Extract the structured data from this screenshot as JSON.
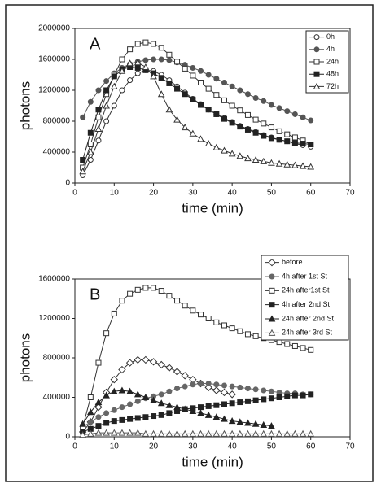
{
  "chart_data": [
    {
      "type": "line",
      "label": "A",
      "xlabel": "time (min)",
      "ylabel": "photons",
      "xlim": [
        0,
        70
      ],
      "xticks": [
        0,
        10,
        20,
        30,
        40,
        50,
        60,
        70
      ],
      "ylim": [
        0,
        2000000
      ],
      "yticks": [
        0,
        400000,
        800000,
        1200000,
        1600000,
        2000000
      ],
      "legend": "upper right",
      "x": [
        2,
        4,
        6,
        8,
        10,
        12,
        14,
        16,
        18,
        20,
        22,
        24,
        26,
        28,
        30,
        32,
        34,
        36,
        38,
        40,
        42,
        44,
        46,
        48,
        50,
        52,
        54,
        56,
        58,
        60
      ],
      "series": [
        {
          "name": "0h",
          "color": "#333333",
          "marker": "circle-open",
          "values": [
            100000,
            300000,
            550000,
            800000,
            1000000,
            1200000,
            1330000,
            1420000,
            1460000,
            1450000,
            1400000,
            1330000,
            1250000,
            1170000,
            1090000,
            1020000,
            950000,
            890000,
            840000,
            790000,
            740000,
            700000,
            660000,
            620000,
            590000,
            560000,
            540000,
            510000,
            490000,
            470000
          ]
        },
        {
          "name": "4h",
          "color": "#555555",
          "marker": "circle-filled",
          "values": [
            850000,
            1050000,
            1200000,
            1320000,
            1420000,
            1490000,
            1540000,
            1570000,
            1590000,
            1600000,
            1600000,
            1590000,
            1560000,
            1530000,
            1490000,
            1450000,
            1400000,
            1350000,
            1300000,
            1250000,
            1200000,
            1150000,
            1100000,
            1060000,
            1010000,
            970000,
            930000,
            890000,
            850000,
            810000
          ]
        },
        {
          "name": "24h",
          "color": "#333333",
          "marker": "square-open",
          "values": [
            200000,
            500000,
            850000,
            1150000,
            1400000,
            1600000,
            1730000,
            1800000,
            1820000,
            1800000,
            1750000,
            1660000,
            1570000,
            1480000,
            1390000,
            1300000,
            1220000,
            1140000,
            1070000,
            1000000,
            940000,
            880000,
            820000,
            770000,
            720000,
            670000,
            630000,
            590000,
            550000,
            500000
          ]
        },
        {
          "name": "48h",
          "color": "#222222",
          "marker": "square-filled",
          "values": [
            300000,
            650000,
            950000,
            1200000,
            1380000,
            1470000,
            1500000,
            1490000,
            1460000,
            1420000,
            1360000,
            1290000,
            1220000,
            1150000,
            1080000,
            1010000,
            950000,
            890000,
            830000,
            780000,
            730000,
            690000,
            650000,
            610000,
            580000,
            560000,
            540000,
            520000,
            510000,
            500000
          ]
        },
        {
          "name": "72h",
          "color": "#333333",
          "marker": "triangle-open",
          "values": [
            150000,
            400000,
            700000,
            1000000,
            1250000,
            1450000,
            1550000,
            1560000,
            1500000,
            1380000,
            1150000,
            950000,
            820000,
            720000,
            640000,
            570000,
            510000,
            460000,
            420000,
            380000,
            350000,
            320000,
            300000,
            280000,
            260000,
            250000,
            240000,
            230000,
            220000,
            210000
          ]
        }
      ]
    },
    {
      "type": "line",
      "label": "B",
      "xlabel": "time (min)",
      "ylabel": "photons",
      "xlim": [
        0,
        70
      ],
      "xticks": [
        0,
        10,
        20,
        30,
        40,
        50,
        60,
        70
      ],
      "ylim": [
        0,
        1600000
      ],
      "yticks": [
        0,
        400000,
        800000,
        1200000,
        1600000
      ],
      "legend": "upper right",
      "x": [
        2,
        4,
        6,
        8,
        10,
        12,
        14,
        16,
        18,
        20,
        22,
        24,
        26,
        28,
        30,
        32,
        34,
        36,
        38,
        40,
        42,
        44,
        46,
        48,
        50,
        52,
        54,
        56,
        58,
        60
      ],
      "series": [
        {
          "name": "before",
          "color": "#333333",
          "marker": "diamond-open",
          "values": [
            50000,
            150000,
            300000,
            450000,
            580000,
            680000,
            750000,
            780000,
            780000,
            760000,
            730000,
            700000,
            660000,
            620000,
            580000,
            540000,
            500000,
            470000,
            450000,
            430000,
            null,
            null,
            null,
            null,
            null,
            null,
            null,
            null,
            null,
            null
          ]
        },
        {
          "name": "4h after 1st St",
          "color": "#666666",
          "marker": "circle-filled",
          "values": [
            100000,
            150000,
            200000,
            240000,
            270000,
            300000,
            330000,
            360000,
            390000,
            410000,
            430000,
            460000,
            490000,
            510000,
            530000,
            540000,
            540000,
            530000,
            520000,
            510000,
            500000,
            490000,
            480000,
            470000,
            460000,
            450000,
            440000,
            440000,
            430000,
            430000
          ]
        },
        {
          "name": "24h after1st St",
          "color": "#333333",
          "marker": "square-open",
          "values": [
            100000,
            400000,
            750000,
            1050000,
            1250000,
            1380000,
            1450000,
            1490000,
            1510000,
            1510000,
            1480000,
            1430000,
            1380000,
            1330000,
            1280000,
            1240000,
            1200000,
            1160000,
            1130000,
            1100000,
            1070000,
            1040000,
            1020000,
            1000000,
            980000,
            960000,
            940000,
            920000,
            900000,
            880000
          ]
        },
        {
          "name": "4h after 2nd St",
          "color": "#222222",
          "marker": "square-filled",
          "values": [
            50000,
            80000,
            110000,
            140000,
            160000,
            170000,
            180000,
            190000,
            200000,
            210000,
            220000,
            240000,
            260000,
            280000,
            290000,
            300000,
            310000,
            320000,
            330000,
            340000,
            350000,
            360000,
            370000,
            380000,
            390000,
            400000,
            410000,
            420000,
            420000,
            430000
          ]
        },
        {
          "name": "24h after 2nd St",
          "color": "#222222",
          "marker": "triangle-filled",
          "values": [
            130000,
            250000,
            350000,
            420000,
            460000,
            470000,
            460000,
            430000,
            400000,
            370000,
            340000,
            320000,
            300000,
            280000,
            260000,
            240000,
            220000,
            200000,
            180000,
            160000,
            150000,
            140000,
            130000,
            120000,
            110000,
            null,
            null,
            null,
            null,
            null
          ]
        },
        {
          "name": "24h after 3rd St",
          "color": "#555555",
          "marker": "triangle-open",
          "values": [
            20000,
            30000,
            40000,
            40000,
            40000,
            40000,
            40000,
            40000,
            30000,
            30000,
            30000,
            30000,
            30000,
            30000,
            30000,
            30000,
            30000,
            30000,
            30000,
            30000,
            30000,
            30000,
            30000,
            30000,
            30000,
            30000,
            30000,
            30000,
            30000,
            30000
          ]
        }
      ]
    }
  ]
}
